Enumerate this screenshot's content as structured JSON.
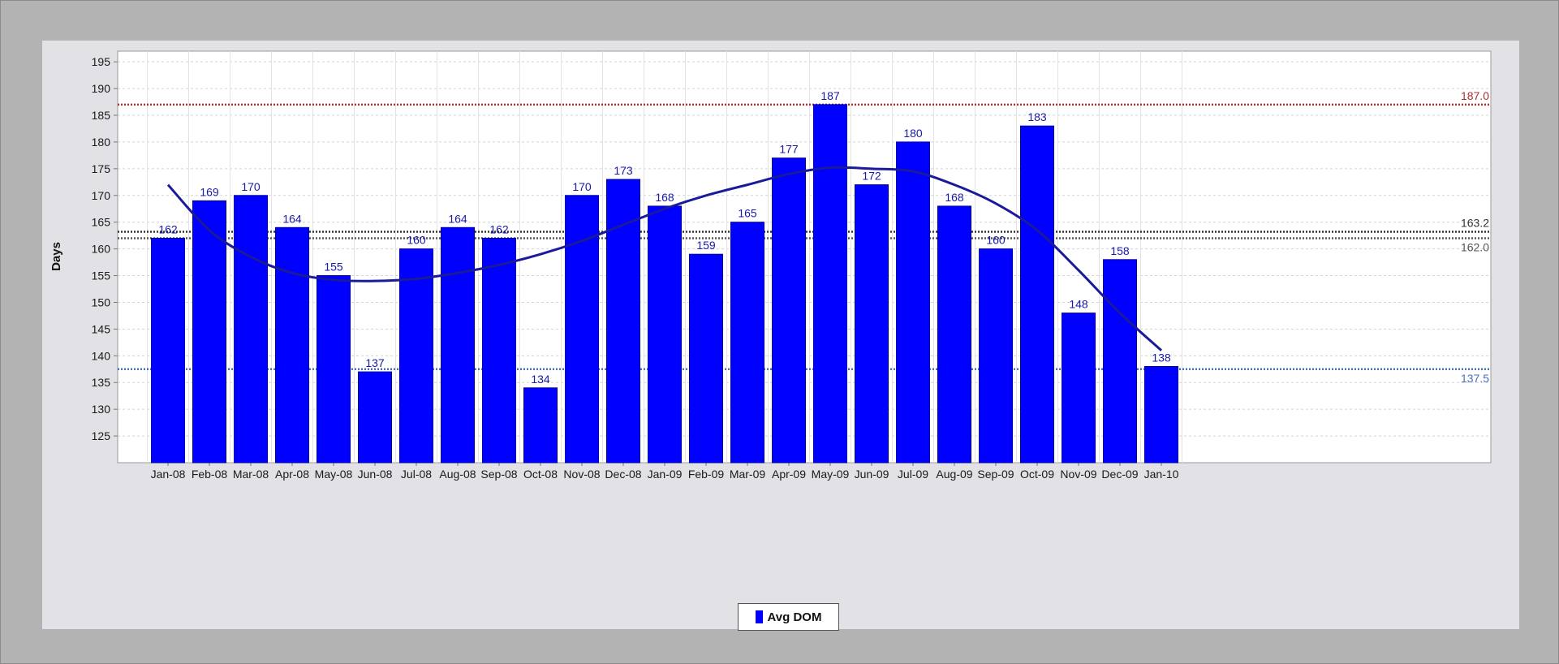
{
  "chart_data": {
    "type": "bar",
    "title": "",
    "xlabel": "",
    "ylabel": "Days",
    "ylim": [
      120,
      197
    ],
    "yticks": [
      125,
      130,
      135,
      140,
      145,
      150,
      155,
      160,
      165,
      170,
      175,
      180,
      185,
      190,
      195
    ],
    "grid": true,
    "legend_position": "bottom-center",
    "categories": [
      "Jan-08",
      "Feb-08",
      "Mar-08",
      "Apr-08",
      "May-08",
      "Jun-08",
      "Jul-08",
      "Aug-08",
      "Sep-08",
      "Oct-08",
      "Nov-08",
      "Dec-08",
      "Jan-09",
      "Feb-09",
      "Mar-09",
      "Apr-09",
      "May-09",
      "Jun-09",
      "Jul-09",
      "Aug-09",
      "Sep-09",
      "Oct-09",
      "Nov-09",
      "Dec-09",
      "Jan-10"
    ],
    "series": [
      {
        "name": "Avg DOM",
        "color": "#0000ff",
        "values": [
          162,
          169,
          170,
          164,
          155,
          137,
          160,
          164,
          162,
          134,
          170,
          173,
          168,
          159,
          165,
          177,
          187,
          172,
          180,
          168,
          160,
          183,
          148,
          158,
          138
        ],
        "labels": [
          "162",
          "169",
          "170",
          "164",
          "155",
          "137",
          "160",
          "164",
          "162",
          "134",
          "170",
          "173",
          "168",
          "159",
          "165",
          "177",
          "187",
          "172",
          "180",
          "168",
          "160",
          "183",
          "148",
          "158",
          "138"
        ]
      }
    ],
    "trend_line": {
      "color": "#1a1a9a",
      "values": [
        172,
        163.5,
        158.5,
        155.5,
        154.2,
        154,
        154.4,
        155.5,
        157,
        159,
        161.5,
        164.5,
        167.5,
        170,
        172,
        174,
        175.2,
        175,
        174.5,
        172,
        168.5,
        163.5,
        156,
        148,
        141
      ]
    },
    "reference_lines": [
      {
        "value": 187.0,
        "label": "187.0",
        "color": "#b03030",
        "style": "dotted"
      },
      {
        "value": 163.2,
        "label": "163.2",
        "color": "#333333",
        "style": "dotted"
      },
      {
        "value": 162.0,
        "label": "162.0",
        "color": "#555555",
        "style": "dotted"
      },
      {
        "value": 137.5,
        "label": "137.5",
        "color": "#4a6fc0",
        "style": "dotted"
      }
    ]
  }
}
